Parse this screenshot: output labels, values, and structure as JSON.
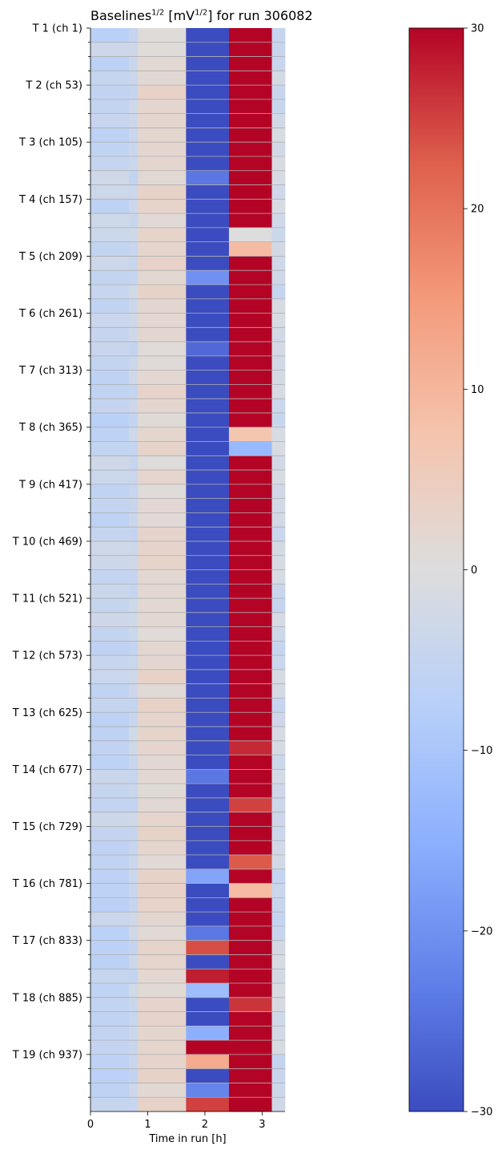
{
  "chart_data": {
    "type": "heatmap",
    "title": {
      "prefix": "Baselines",
      "prefix_sup": "1/2",
      "unit_open": " [mV",
      "unit_sup": "1/2",
      "suffix": "] for run 306082"
    },
    "xlabel": "Time in run [h]",
    "xlim": [
      0,
      3.4
    ],
    "xticks": [
      "0",
      "1",
      "2",
      "3"
    ],
    "ylabels": [
      "T 1 (ch 1)",
      "T 2 (ch 53)",
      "T 3 (ch 105)",
      "T 4 (ch 157)",
      "T 5 (ch 209)",
      "T 6 (ch 261)",
      "T 7 (ch 313)",
      "T 8 (ch 365)",
      "T 9 (ch 417)",
      "T 10 (ch 469)",
      "T 11 (ch 521)",
      "T 12 (ch 573)",
      "T 13 (ch 625)",
      "T 14 (ch 677)",
      "T 15 (ch 729)",
      "T 16 (ch 781)",
      "T 17 (ch 833)",
      "T 18 (ch 885)",
      "T 19 (ch 937)"
    ],
    "rows": 76,
    "time_bins": [
      0,
      0.67,
      0.83,
      1.67,
      2.42,
      3.17,
      3.4
    ],
    "column_typical_values": [
      -5,
      -4,
      2,
      -30,
      30,
      -3
    ],
    "notable_cells": [
      {
        "row": 10,
        "col": 3,
        "value": -24
      },
      {
        "row": 14,
        "col": 4,
        "value": 0
      },
      {
        "row": 15,
        "col": 4,
        "value": 9
      },
      {
        "row": 17,
        "col": 3,
        "value": -20
      },
      {
        "row": 22,
        "col": 3,
        "value": -26
      },
      {
        "row": 28,
        "col": 4,
        "value": 7
      },
      {
        "row": 29,
        "col": 4,
        "value": -13
      },
      {
        "row": 50,
        "col": 4,
        "value": 27
      },
      {
        "row": 52,
        "col": 3,
        "value": -24
      },
      {
        "row": 54,
        "col": 4,
        "value": 25
      },
      {
        "row": 58,
        "col": 4,
        "value": 23
      },
      {
        "row": 59,
        "col": 3,
        "value": -17
      },
      {
        "row": 60,
        "col": 4,
        "value": 9
      },
      {
        "row": 63,
        "col": 3,
        "value": -24
      },
      {
        "row": 64,
        "col": 3,
        "value": 24
      },
      {
        "row": 66,
        "col": 3,
        "value": 28
      },
      {
        "row": 67,
        "col": 3,
        "value": -12
      },
      {
        "row": 68,
        "col": 4,
        "value": 26
      },
      {
        "row": 70,
        "col": 3,
        "value": -15
      },
      {
        "row": 71,
        "col": 3,
        "value": 30
      },
      {
        "row": 72,
        "col": 3,
        "value": 12
      },
      {
        "row": 74,
        "col": 3,
        "value": -22
      },
      {
        "row": 75,
        "col": 3,
        "value": 25
      }
    ],
    "colorbar": {
      "colormap": "coolwarm",
      "range": [
        -30,
        30
      ],
      "ticks": [
        "30",
        "20",
        "10",
        "0",
        "−10",
        "−20",
        "−30"
      ]
    },
    "grid": "horizontal, light gray"
  }
}
